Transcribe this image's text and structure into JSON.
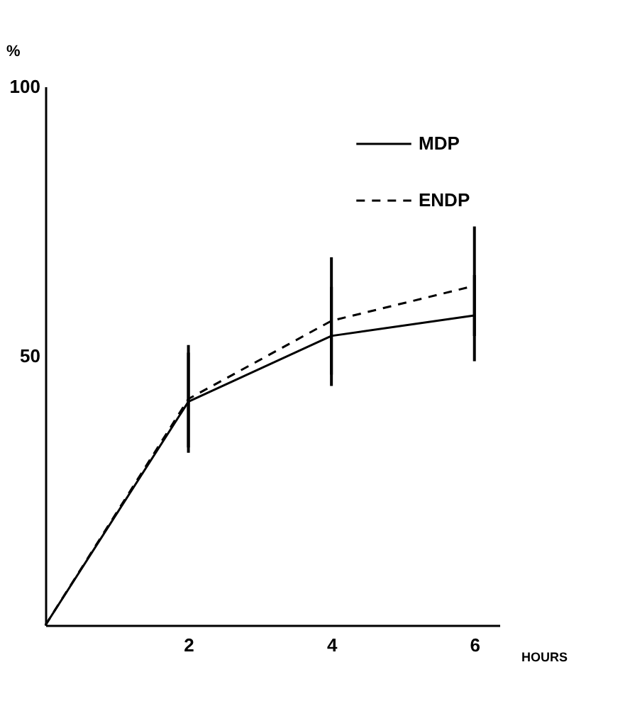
{
  "chart_data": {
    "type": "line",
    "xlabel": "HOURS",
    "ylabel": "%",
    "x": [
      0,
      2,
      4,
      6
    ],
    "xlim": [
      0,
      6.35
    ],
    "xticks": [
      2,
      4,
      6
    ],
    "ylim": [
      0,
      100
    ],
    "yticks": [
      50,
      100
    ],
    "grid": false,
    "legend": "top right",
    "marker": "none",
    "series": [
      {
        "name": "MDP",
        "color": "#000000",
        "line_style": "solid",
        "values": [
          0,
          41.5,
          53.7,
          57.5
        ],
        "errors": [
          null,
          [
            32,
            50.6
          ],
          [
            44.4,
            62.8
          ],
          [
            49,
            65
          ]
        ]
      },
      {
        "name": "ENDP",
        "color": "#000000",
        "line_style": "dashed",
        "values": [
          0,
          42,
          56.5,
          63
        ],
        "errors": [
          null,
          [
            33,
            52
          ],
          [
            46.5,
            68.3
          ],
          [
            53.7,
            74
          ]
        ]
      }
    ]
  }
}
